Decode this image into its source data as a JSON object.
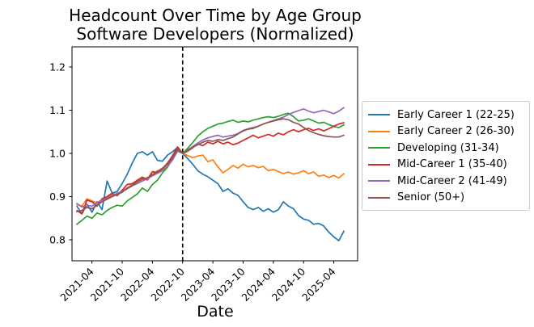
{
  "chart_data": {
    "type": "line",
    "title": "Headcount Over Time by Age Group",
    "subtitle": "Software Developers (Normalized)",
    "xlabel": "Date",
    "ylabel": "",
    "grid": false,
    "legend_position": "right",
    "ylim": [
      0.751,
      1.247
    ],
    "yticks": [
      0.8,
      0.9,
      1.0,
      1.1,
      1.2
    ],
    "x_tick_labels": [
      "2021-04",
      "2021-10",
      "2022-04",
      "2022-10",
      "2023-04",
      "2023-10",
      "2024-04",
      "2024-10",
      "2025-04"
    ],
    "vline": {
      "x": "2022-10",
      "style": "dashed",
      "color": "#000000"
    },
    "x": [
      "2021-01",
      "2021-02",
      "2021-03",
      "2021-04",
      "2021-05",
      "2021-06",
      "2021-07",
      "2021-08",
      "2021-09",
      "2021-10",
      "2021-11",
      "2021-12",
      "2022-01",
      "2022-02",
      "2022-03",
      "2022-04",
      "2022-05",
      "2022-06",
      "2022-07",
      "2022-08",
      "2022-09",
      "2022-10",
      "2022-11",
      "2022-12",
      "2023-01",
      "2023-02",
      "2023-03",
      "2023-04",
      "2023-05",
      "2023-06",
      "2023-07",
      "2023-08",
      "2023-09",
      "2023-10",
      "2023-11",
      "2023-12",
      "2024-01",
      "2024-02",
      "2024-03",
      "2024-04",
      "2024-05",
      "2024-06",
      "2024-07",
      "2024-08",
      "2024-09",
      "2024-10",
      "2024-11",
      "2024-12",
      "2025-01",
      "2025-02",
      "2025-03",
      "2025-04",
      "2025-05",
      "2025-06"
    ],
    "series": [
      {
        "name": "Early Career 1 (22-25)",
        "color": "#1f77b4",
        "values": [
          0.878,
          0.86,
          0.882,
          0.864,
          0.888,
          0.87,
          0.936,
          0.908,
          0.912,
          0.93,
          0.952,
          0.978,
          1.0,
          1.004,
          0.996,
          1.004,
          0.984,
          0.982,
          0.996,
          1.004,
          1.014,
          1.0,
          0.988,
          0.975,
          0.96,
          0.952,
          0.946,
          0.938,
          0.93,
          0.912,
          0.918,
          0.908,
          0.903,
          0.888,
          0.875,
          0.87,
          0.875,
          0.866,
          0.872,
          0.864,
          0.87,
          0.888,
          0.878,
          0.872,
          0.856,
          0.848,
          0.845,
          0.836,
          0.838,
          0.832,
          0.818,
          0.807,
          0.798,
          0.82
        ]
      },
      {
        "name": "Early Career 2 (26-30)",
        "color": "#ff7f0e",
        "values": [
          0.882,
          0.878,
          0.895,
          0.89,
          0.885,
          0.893,
          0.898,
          0.905,
          0.903,
          0.912,
          0.92,
          0.928,
          0.935,
          0.942,
          0.938,
          0.952,
          0.96,
          0.963,
          0.975,
          0.992,
          1.012,
          1.0,
          0.995,
          0.99,
          0.994,
          0.996,
          0.981,
          0.985,
          0.969,
          0.955,
          0.963,
          0.972,
          0.966,
          0.975,
          0.969,
          0.972,
          0.967,
          0.97,
          0.96,
          0.963,
          0.958,
          0.953,
          0.957,
          0.952,
          0.955,
          0.96,
          0.953,
          0.957,
          0.947,
          0.95,
          0.944,
          0.949,
          0.943,
          0.953
        ]
      },
      {
        "name": "Developing (31-34)",
        "color": "#2ca02c",
        "values": [
          0.836,
          0.845,
          0.855,
          0.85,
          0.862,
          0.858,
          0.868,
          0.875,
          0.88,
          0.878,
          0.89,
          0.898,
          0.906,
          0.92,
          0.912,
          0.928,
          0.938,
          0.955,
          0.968,
          0.988,
          1.008,
          1.0,
          1.012,
          1.025,
          1.04,
          1.05,
          1.058,
          1.063,
          1.068,
          1.07,
          1.074,
          1.077,
          1.072,
          1.075,
          1.073,
          1.077,
          1.08,
          1.083,
          1.085,
          1.083,
          1.086,
          1.09,
          1.093,
          1.085,
          1.075,
          1.077,
          1.08,
          1.075,
          1.07,
          1.072,
          1.067,
          1.062,
          1.06,
          1.066
        ]
      },
      {
        "name": "Mid-Career 1 (35-40)",
        "color": "#d62728",
        "values": [
          0.868,
          0.86,
          0.892,
          0.888,
          0.878,
          0.895,
          0.9,
          0.908,
          0.902,
          0.915,
          0.928,
          0.93,
          0.938,
          0.945,
          0.94,
          0.958,
          0.955,
          0.965,
          0.978,
          0.995,
          1.015,
          1.0,
          1.005,
          1.013,
          1.022,
          1.018,
          1.026,
          1.022,
          1.028,
          1.022,
          1.026,
          1.02,
          1.024,
          1.03,
          1.036,
          1.042,
          1.036,
          1.04,
          1.044,
          1.04,
          1.047,
          1.043,
          1.05,
          1.055,
          1.05,
          1.055,
          1.058,
          1.053,
          1.057,
          1.052,
          1.057,
          1.063,
          1.068,
          1.071
        ]
      },
      {
        "name": "Mid-Career 2 (41-49)",
        "color": "#9467bd",
        "values": [
          0.884,
          0.876,
          0.88,
          0.878,
          0.886,
          0.892,
          0.896,
          0.902,
          0.908,
          0.912,
          0.918,
          0.925,
          0.93,
          0.936,
          0.942,
          0.948,
          0.954,
          0.96,
          0.97,
          0.985,
          1.005,
          1.0,
          1.008,
          1.016,
          1.024,
          1.031,
          1.036,
          1.039,
          1.042,
          1.038,
          1.04,
          1.042,
          1.046,
          1.053,
          1.057,
          1.06,
          1.063,
          1.068,
          1.072,
          1.076,
          1.08,
          1.084,
          1.09,
          1.095,
          1.099,
          1.103,
          1.098,
          1.094,
          1.097,
          1.1,
          1.096,
          1.092,
          1.098,
          1.106
        ]
      },
      {
        "name": "Senior (50+)",
        "color": "#8c564b",
        "values": [
          0.865,
          0.868,
          0.875,
          0.872,
          0.88,
          0.888,
          0.894,
          0.9,
          0.905,
          0.91,
          0.92,
          0.926,
          0.934,
          0.94,
          0.944,
          0.95,
          0.958,
          0.966,
          0.975,
          0.99,
          1.01,
          1.0,
          1.006,
          1.014,
          1.02,
          1.026,
          1.03,
          1.028,
          1.032,
          1.03,
          1.034,
          1.038,
          1.045,
          1.052,
          1.056,
          1.058,
          1.063,
          1.068,
          1.072,
          1.075,
          1.078,
          1.08,
          1.078,
          1.072,
          1.068,
          1.06,
          1.053,
          1.048,
          1.044,
          1.041,
          1.039,
          1.038,
          1.038,
          1.042
        ]
      }
    ]
  }
}
